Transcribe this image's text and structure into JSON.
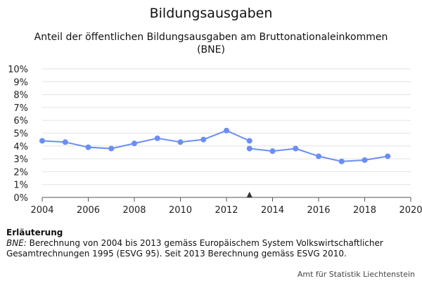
{
  "title": "Bildungsausgaben",
  "subtitle": "Anteil der öffentlichen Bildungsausgaben am Bruttonationaleinkommen (BNE)",
  "note": {
    "heading": "Erläuterung",
    "term": "BNE:",
    "text": " Berechnung von 2004 bis 2013 gemäss Europäischem System Volkswirtschaftlicher Gesamtrechnungen 1995 (ESVG 95). Seit 2013 Berechnung gemäss ESVG 2010."
  },
  "source": "Amt für Statistik Liechtenstein",
  "chart_data": {
    "type": "line",
    "title": "Bildungsausgaben",
    "xlabel": "",
    "ylabel": "",
    "xlim": [
      2004,
      2020
    ],
    "ylim": [
      0,
      10
    ],
    "x_ticks": [
      "2004",
      "2006",
      "2008",
      "2010",
      "2012",
      "2014",
      "2016",
      "2018",
      "2020"
    ],
    "x_tick_values": [
      2004,
      2006,
      2008,
      2010,
      2012,
      2014,
      2016,
      2018,
      2020
    ],
    "y_ticks": [
      "0%",
      "1%",
      "2%",
      "3%",
      "4%",
      "5%",
      "6%",
      "7%",
      "8%",
      "9%",
      "10%"
    ],
    "y_tick_values": [
      0,
      1,
      2,
      3,
      4,
      5,
      6,
      7,
      8,
      9,
      10
    ],
    "grid": true,
    "marker_symbol": "▲",
    "marker_x": 2013,
    "series": [
      {
        "color": "#6b8ef5",
        "x": [
          2004,
          2005,
          2006,
          2007,
          2008,
          2009,
          2010,
          2011,
          2012,
          2013
        ],
        "y": [
          4.4,
          4.3,
          3.9,
          3.8,
          4.2,
          4.6,
          4.3,
          4.5,
          5.2,
          4.4
        ]
      },
      {
        "color": "#6b8ef5",
        "x": [
          2013,
          2014,
          2015,
          2016,
          2017,
          2018,
          2019
        ],
        "y": [
          3.8,
          3.6,
          3.8,
          3.2,
          2.8,
          2.9,
          3.2
        ]
      }
    ]
  }
}
